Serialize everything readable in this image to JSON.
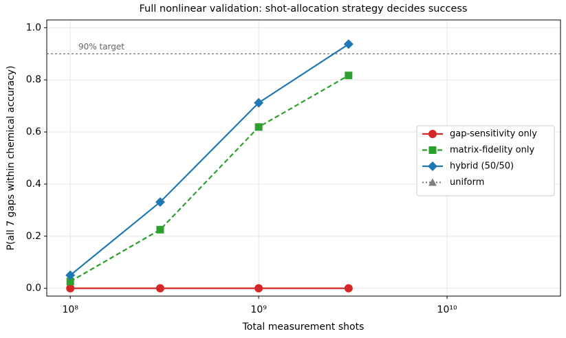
{
  "chart_data": {
    "type": "line",
    "title": "Full nonlinear validation: shot-allocation strategy decides success",
    "xlabel": "Total measurement shots",
    "ylabel": "P(all 7 gaps within chemical accuracy)",
    "x": [
      100000000,
      300000000,
      1000000000,
      3000000000
    ],
    "xscale": "log",
    "xlim": [
      75000000,
      40000000000
    ],
    "xticks": [
      {
        "value": 100000000,
        "label": "10⁸"
      },
      {
        "value": 1000000000,
        "label": "10⁹"
      },
      {
        "value": 10000000000,
        "label": "10¹⁰"
      }
    ],
    "ylim": [
      -0.03,
      1.03
    ],
    "yticks": [
      {
        "value": 0,
        "label": "0.0"
      },
      {
        "value": 0.2,
        "label": "0.2"
      },
      {
        "value": 0.4,
        "label": "0.4"
      },
      {
        "value": 0.6,
        "label": "0.6"
      },
      {
        "value": 0.8,
        "label": "0.8"
      },
      {
        "value": 1,
        "label": "1.0"
      }
    ],
    "grid": true,
    "legend": "right",
    "reference_line": {
      "value": 0.9,
      "label": "90% target",
      "color": "#666666"
    },
    "series": [
      {
        "name": "gap-sensitivity only",
        "color": "#d62728",
        "marker": "circle",
        "dash": "solid",
        "values": [
          0,
          0,
          0,
          0
        ]
      },
      {
        "name": "matrix-fidelity only",
        "color": "#2ca02c",
        "marker": "square",
        "dash": "dashed",
        "values": [
          0.026,
          0.225,
          0.619,
          0.817
        ]
      },
      {
        "name": "hybrid (50/50)",
        "color": "#1f77b4",
        "marker": "diamond",
        "dash": "solid",
        "values": [
          0.05,
          0.331,
          0.712,
          0.937
        ]
      },
      {
        "name": "uniform",
        "color": "#7f7f7f",
        "marker": "triangle",
        "dash": "dotted",
        "values": [
          null,
          null,
          null,
          null
        ]
      }
    ]
  }
}
